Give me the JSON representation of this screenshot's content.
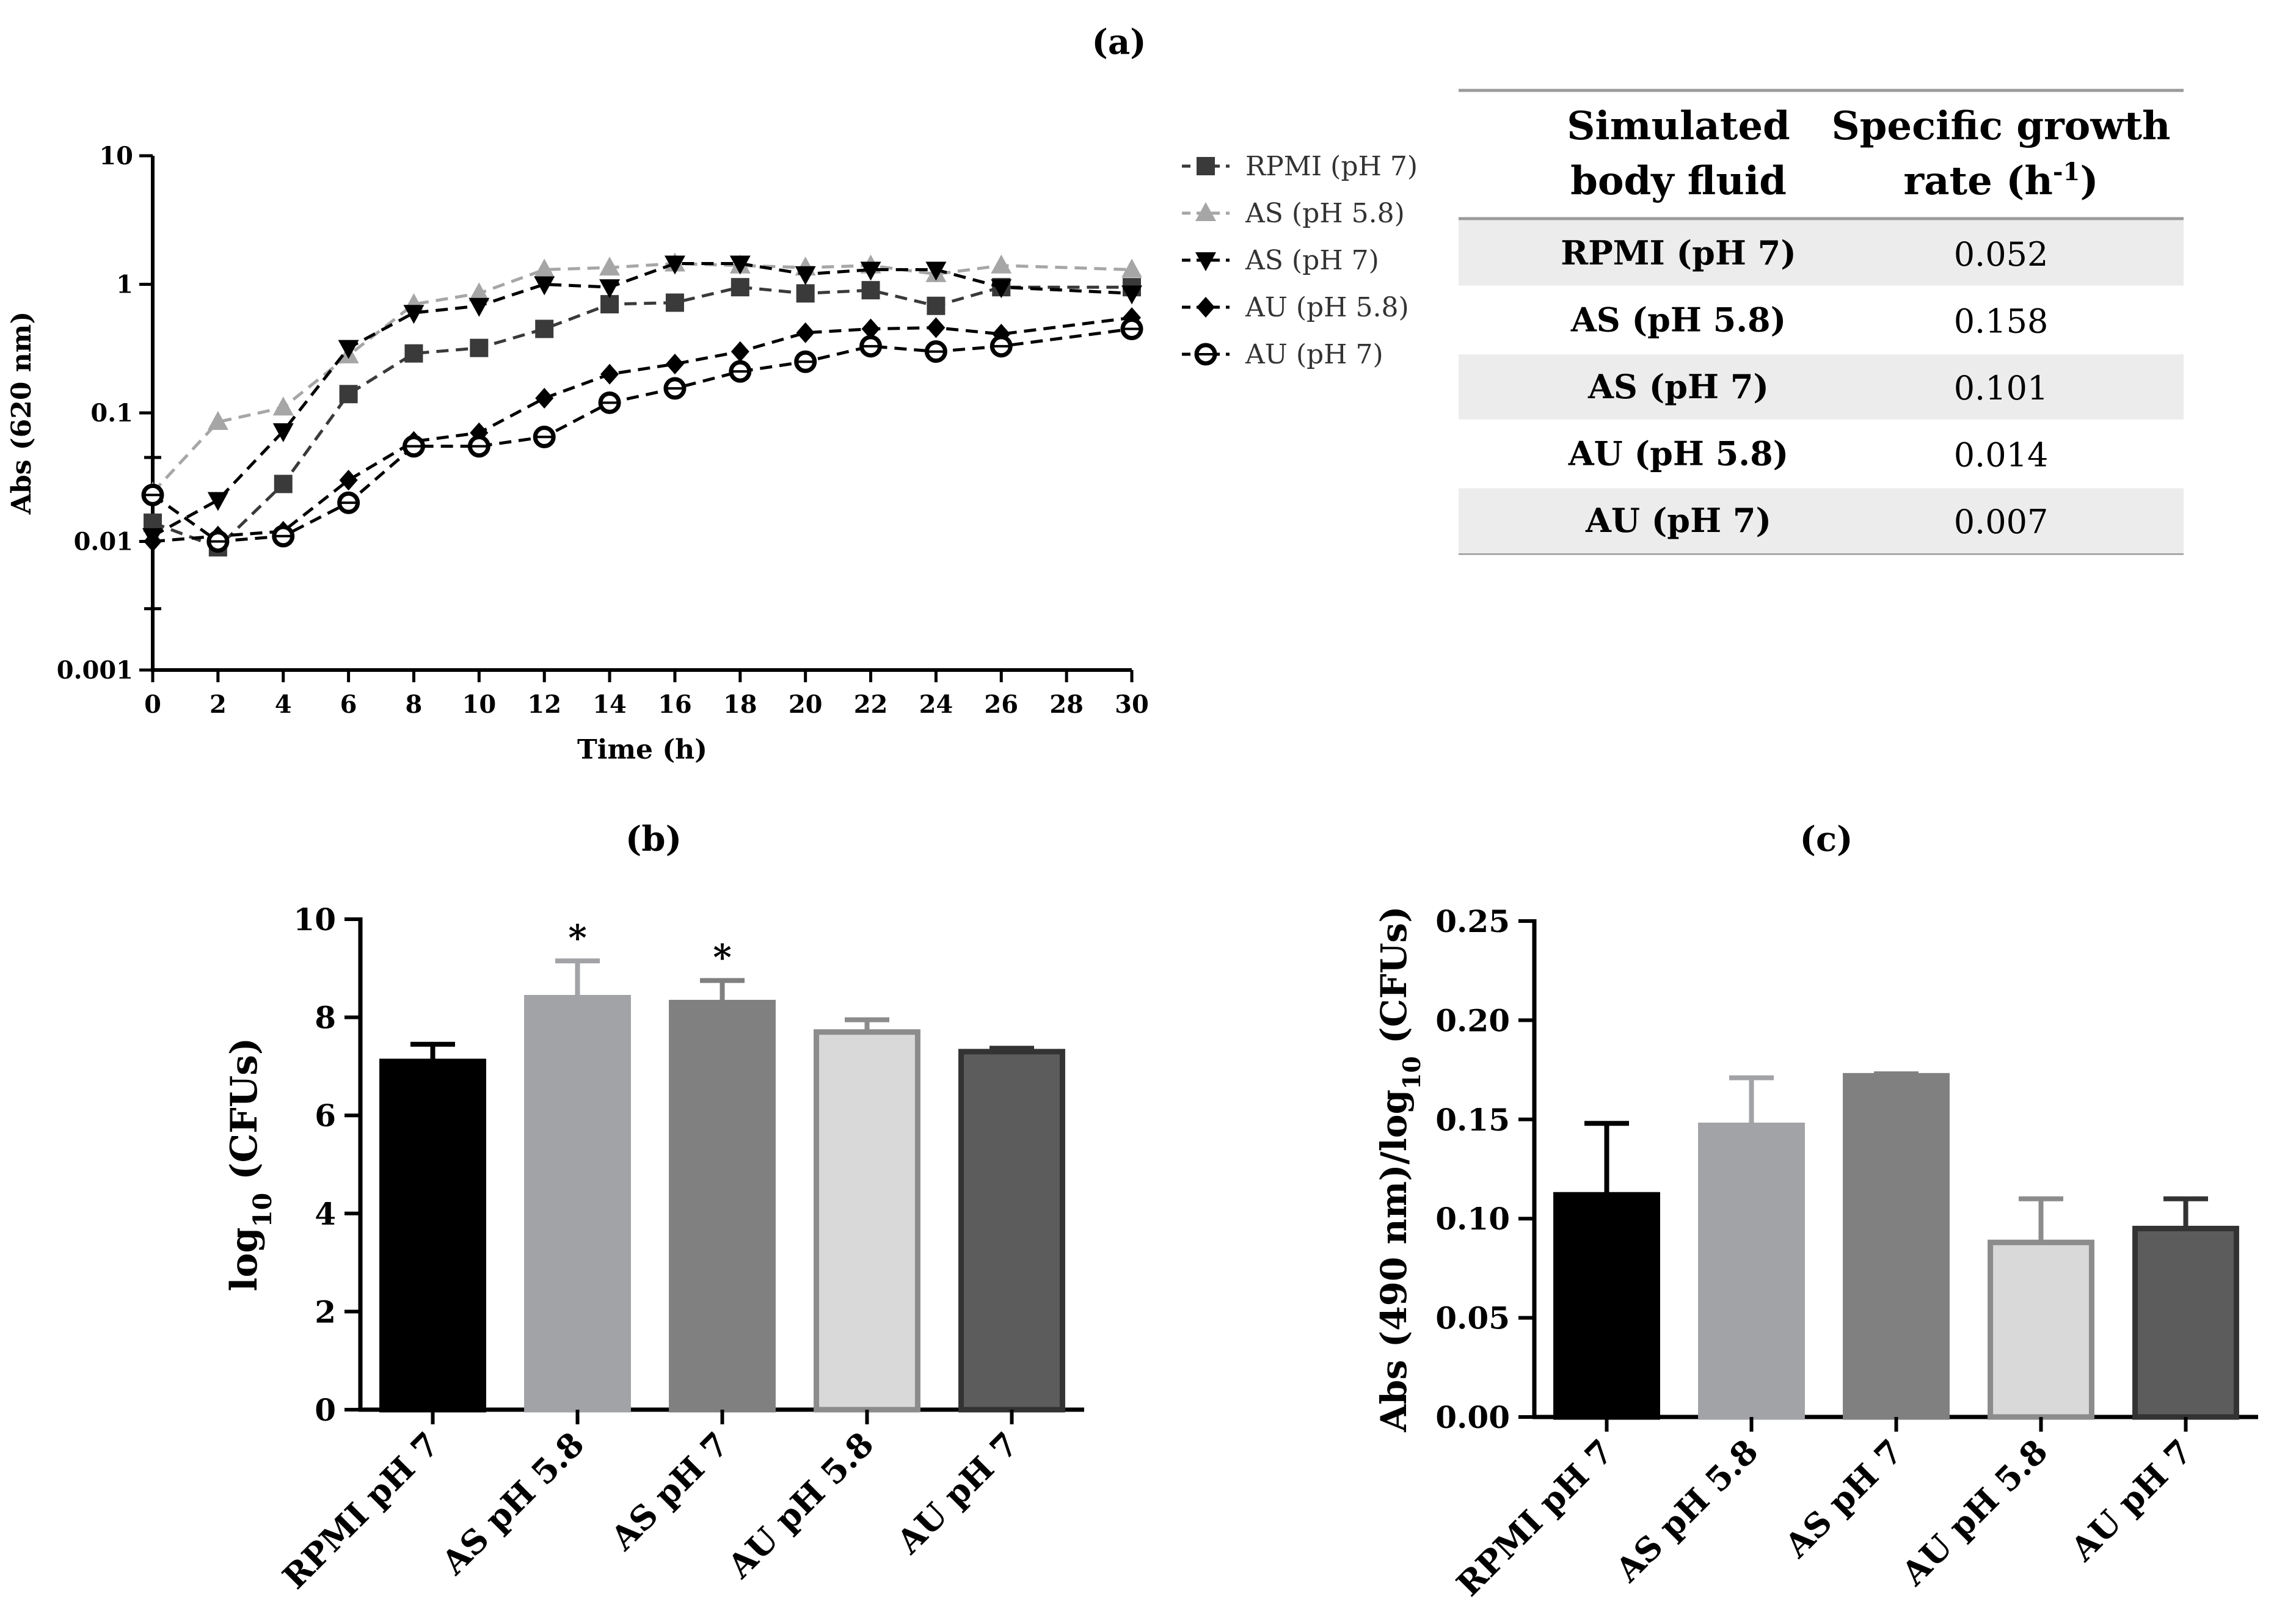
{
  "chart_data": [
    {
      "id": "a",
      "type": "line",
      "panel_label": "(a)",
      "xlabel": "Time (h)",
      "ylabel": "Abs (620 nm)",
      "yscale": "log",
      "xlim": [
        0,
        30
      ],
      "ylim": [
        0.001,
        10
      ],
      "x_ticks": [
        0,
        2,
        4,
        6,
        8,
        10,
        12,
        14,
        16,
        18,
        20,
        22,
        24,
        26,
        28,
        30
      ],
      "x_tick_labels": [
        "0",
        "2",
        "4",
        "6",
        "8",
        "10",
        "12",
        "14",
        "16",
        "18",
        "20",
        "22",
        "24",
        "26",
        "28",
        "30"
      ],
      "y_ticks": [
        0.001,
        0.01,
        0.1,
        1,
        10
      ],
      "y_tick_labels": [
        "0.001",
        "0.01",
        "0.1",
        "1",
        "10"
      ],
      "x": [
        0,
        2,
        4,
        6,
        8,
        10,
        12,
        14,
        16,
        18,
        20,
        22,
        24,
        26,
        30
      ],
      "series": [
        {
          "name": "RPMI (pH 7)",
          "marker": "square",
          "color": "#3a3a3a",
          "values": [
            0.014,
            0.009,
            0.028,
            0.14,
            0.29,
            0.32,
            0.45,
            0.7,
            0.72,
            0.95,
            0.85,
            0.9,
            0.68,
            0.95,
            0.95
          ]
        },
        {
          "name": "AS (pH 5.8)",
          "marker": "triangle-up",
          "color": "#a6a6a6",
          "values": [
            0.024,
            0.085,
            0.11,
            0.28,
            0.7,
            0.85,
            1.3,
            1.35,
            1.45,
            1.4,
            1.35,
            1.4,
            1.2,
            1.4,
            1.3
          ]
        },
        {
          "name": "AS (pH 7)",
          "marker": "triangle-down",
          "color": "#000000",
          "values": [
            0.011,
            0.021,
            0.072,
            0.32,
            0.6,
            0.68,
            1.0,
            0.95,
            1.45,
            1.45,
            1.2,
            1.3,
            1.3,
            0.95,
            0.85
          ]
        },
        {
          "name": "AU (pH 5.8)",
          "marker": "diamond",
          "color": "#000000",
          "values": [
            0.01,
            0.011,
            0.012,
            0.03,
            0.06,
            0.07,
            0.13,
            0.2,
            0.24,
            0.3,
            0.42,
            0.45,
            0.46,
            0.41,
            0.55
          ]
        },
        {
          "name": "AU (pH 7)",
          "marker": "open-circle",
          "color": "#000000",
          "values": [
            0.023,
            0.01,
            0.011,
            0.02,
            0.055,
            0.055,
            0.065,
            0.12,
            0.155,
            0.21,
            0.25,
            0.33,
            0.3,
            0.33,
            0.45
          ]
        }
      ]
    },
    {
      "id": "b",
      "type": "bar",
      "panel_label": "(b)",
      "ylabel": "log10 (CFUs)",
      "ylabel_main": "log",
      "ylabel_sub": "10",
      "ylabel_tail": " (CFUs)",
      "ylim": [
        0,
        10
      ],
      "y_ticks": [
        0,
        2,
        4,
        6,
        8,
        10
      ],
      "y_tick_labels": [
        "0",
        "2",
        "4",
        "6",
        "8",
        "10"
      ],
      "categories": [
        "RPMI pH 7",
        "AS pH 5.8",
        "AS pH 7",
        "AU pH 5.8",
        "AU pH 7"
      ],
      "values": [
        7.1,
        8.4,
        8.3,
        7.7,
        7.3
      ],
      "errors": [
        0.35,
        0.75,
        0.45,
        0.25,
        0.07
      ],
      "annotations": [
        "",
        "*",
        "*",
        "",
        ""
      ],
      "fill_colors": [
        "#000000",
        "#a2a3a6",
        "#808080",
        "#d9d9d9",
        "#5c5c5c"
      ],
      "edge_colors": [
        "#000000",
        "#a2a3a6",
        "#808080",
        "#8c8c8c",
        "#333333"
      ]
    },
    {
      "id": "c",
      "type": "bar",
      "panel_label": "(c)",
      "ylabel": "Abs (490 nm)/log10 (CFUs)",
      "ylabel_main": "Abs (490 nm)/log",
      "ylabel_sub": "10",
      "ylabel_tail": " (CFUs)",
      "ylim": [
        0,
        0.25
      ],
      "y_ticks": [
        0,
        0.05,
        0.1,
        0.15,
        0.2,
        0.25
      ],
      "y_tick_labels": [
        "0.00",
        "0.05",
        "0.10",
        "0.15",
        "0.20",
        "0.25"
      ],
      "categories": [
        "RPMI pH 7",
        "AS pH 5.8",
        "AS pH 7",
        "AU pH 5.8",
        "AU pH 7"
      ],
      "values": [
        0.112,
        0.147,
        0.172,
        0.088,
        0.095
      ],
      "errors": [
        0.036,
        0.024,
        0.001,
        0.022,
        0.015
      ],
      "annotations": [
        "",
        "",
        "",
        "",
        ""
      ],
      "fill_colors": [
        "#000000",
        "#a2a3a6",
        "#808080",
        "#d9d9d9",
        "#5c5c5c"
      ],
      "edge_colors": [
        "#000000",
        "#a2a3a6",
        "#808080",
        "#8c8c8c",
        "#333333"
      ]
    }
  ],
  "growth_table": {
    "header": [
      "Simulated body fluid",
      "Specific growth rate (h-1)"
    ],
    "header_lines": [
      [
        "Simulated",
        "body fluid"
      ],
      [
        "Specific growth",
        "rate (h",
        "-1",
        ")"
      ]
    ],
    "rows": [
      {
        "fluid": "RPMI (pH 7)",
        "rate": "0.052"
      },
      {
        "fluid": "AS (pH 5.8)",
        "rate": "0.158"
      },
      {
        "fluid": "AS (pH 7)",
        "rate": "0.101"
      },
      {
        "fluid": "AU (pH 5.8)",
        "rate": "0.014"
      },
      {
        "fluid": "AU (pH 7)",
        "rate": "0.007"
      }
    ],
    "stripe_color": "#ececec"
  }
}
